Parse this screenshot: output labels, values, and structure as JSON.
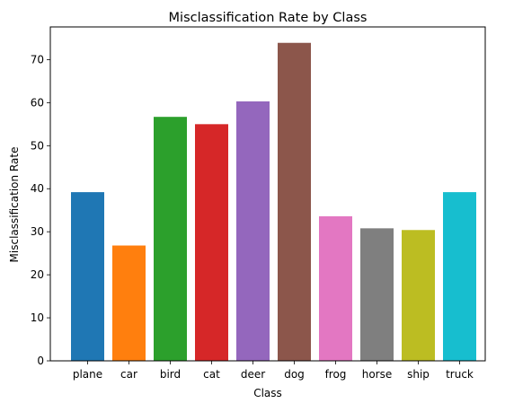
{
  "chart_data": {
    "type": "bar",
    "title": "Misclassification Rate by Class",
    "xlabel": "Class",
    "ylabel": "Misclassification Rate",
    "ylim": [
      0,
      77.6
    ],
    "yticks": [
      0,
      10,
      20,
      30,
      40,
      50,
      60,
      70
    ],
    "grid": false,
    "legend": "none",
    "categories": [
      "plane",
      "car",
      "bird",
      "cat",
      "deer",
      "dog",
      "frog",
      "horse",
      "ship",
      "truck"
    ],
    "values": [
      39.2,
      26.8,
      56.7,
      55.0,
      60.3,
      73.9,
      33.6,
      30.8,
      30.4,
      39.2
    ],
    "colors": [
      "#1f77b4",
      "#ff7f0e",
      "#2ca02c",
      "#d62728",
      "#9467bd",
      "#8c564b",
      "#e377c2",
      "#7f7f7f",
      "#bcbd22",
      "#17becf"
    ]
  }
}
